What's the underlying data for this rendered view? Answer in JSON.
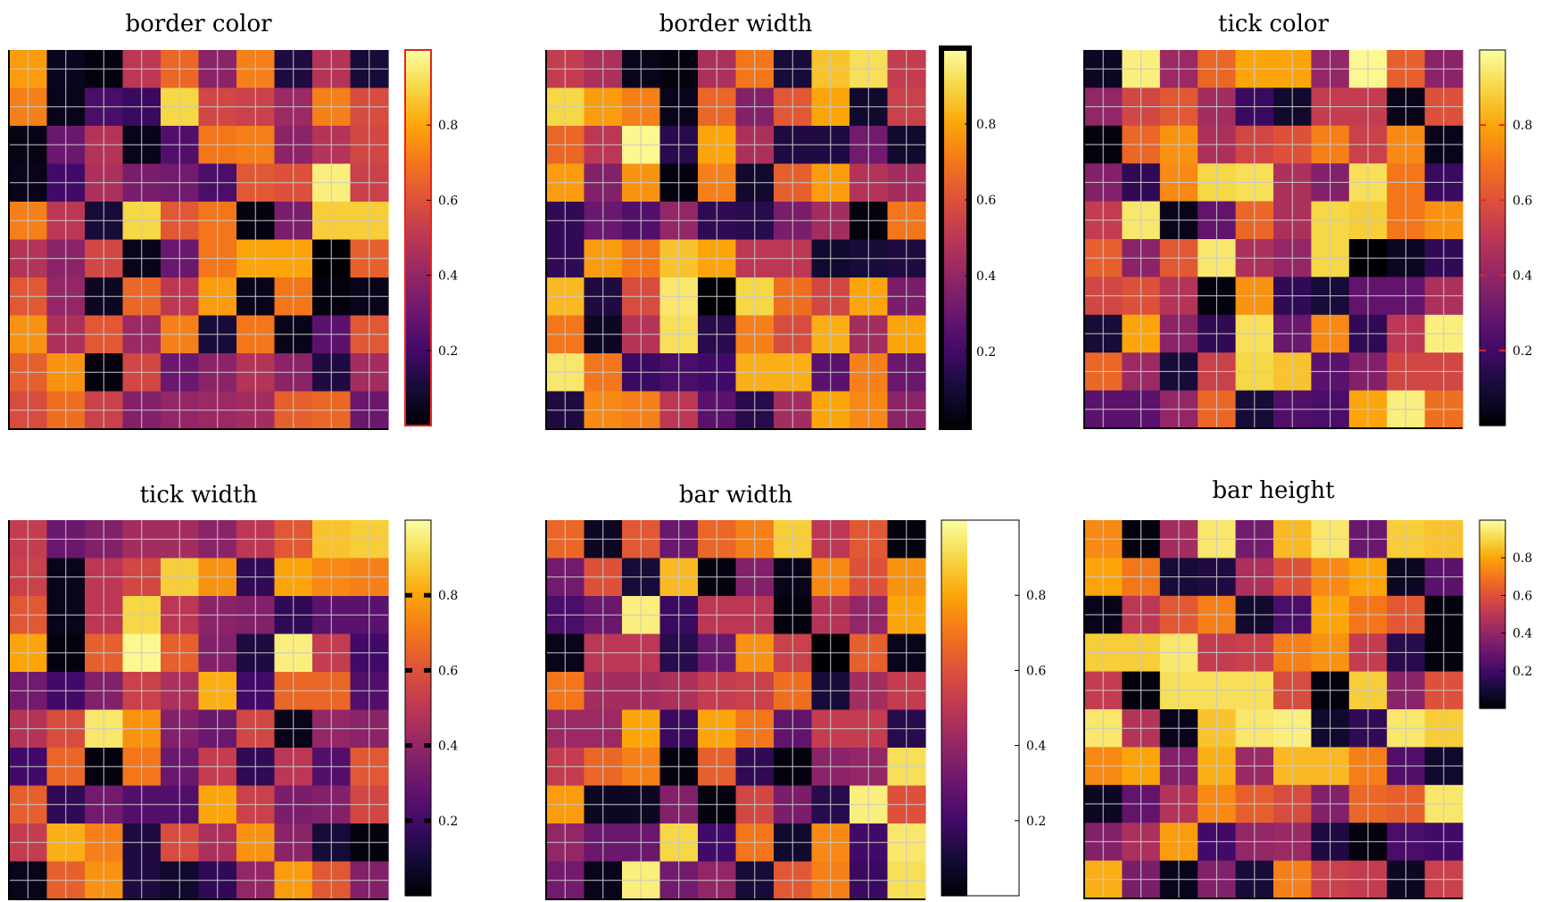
{
  "colormap": "inferno",
  "chart_data": [
    {
      "type": "heatmap",
      "title": "border color",
      "rows": 10,
      "cols": 10,
      "colorbar": {
        "ticks": [
          0.2,
          0.4,
          0.6,
          0.8
        ],
        "tick_labels": [
          "0.2",
          "0.4",
          "0.6",
          "0.8"
        ],
        "range": [
          0,
          1
        ],
        "height": "full",
        "border_color": "#e8231b",
        "style": "border color"
      },
      "values": [
        [
          0.78,
          0.05,
          0.02,
          0.5,
          0.66,
          0.38,
          0.72,
          0.12,
          0.48,
          0.1
        ],
        [
          0.72,
          0.04,
          0.22,
          0.18,
          0.9,
          0.56,
          0.54,
          0.42,
          0.72,
          0.58
        ],
        [
          0.03,
          0.3,
          0.48,
          0.04,
          0.24,
          0.7,
          0.72,
          0.38,
          0.48,
          0.56
        ],
        [
          0.04,
          0.2,
          0.46,
          0.34,
          0.32,
          0.22,
          0.62,
          0.6,
          0.96,
          0.54
        ],
        [
          0.72,
          0.5,
          0.1,
          0.9,
          0.62,
          0.7,
          0.02,
          0.34,
          0.88,
          0.88
        ],
        [
          0.48,
          0.38,
          0.56,
          0.04,
          0.3,
          0.7,
          0.8,
          0.8,
          0.0,
          0.64
        ],
        [
          0.62,
          0.4,
          0.06,
          0.66,
          0.5,
          0.78,
          0.04,
          0.7,
          0.02,
          0.04
        ],
        [
          0.76,
          0.46,
          0.62,
          0.42,
          0.72,
          0.1,
          0.7,
          0.04,
          0.26,
          0.62
        ],
        [
          0.64,
          0.76,
          0.02,
          0.56,
          0.3,
          0.38,
          0.48,
          0.38,
          0.12,
          0.44
        ],
        [
          0.58,
          0.68,
          0.54,
          0.36,
          0.4,
          0.42,
          0.44,
          0.64,
          0.66,
          0.3
        ]
      ]
    },
    {
      "type": "heatmap",
      "title": "border width",
      "rows": 10,
      "cols": 10,
      "colorbar": {
        "ticks": [
          0.2,
          0.4,
          0.6,
          0.8
        ],
        "tick_labels": [
          "0.2",
          "0.4",
          "0.6",
          "0.8"
        ],
        "range": [
          0,
          1
        ],
        "height": "full",
        "border_color": "#000000",
        "style": "border width"
      },
      "values": [
        [
          0.52,
          0.46,
          0.04,
          0.02,
          0.46,
          0.7,
          0.1,
          0.86,
          0.92,
          0.52
        ],
        [
          0.9,
          0.78,
          0.72,
          0.04,
          0.66,
          0.36,
          0.62,
          0.8,
          0.08,
          0.54
        ],
        [
          0.66,
          0.5,
          0.98,
          0.14,
          0.8,
          0.46,
          0.12,
          0.12,
          0.32,
          0.08
        ],
        [
          0.78,
          0.36,
          0.76,
          0.02,
          0.72,
          0.08,
          0.64,
          0.78,
          0.48,
          0.44
        ],
        [
          0.16,
          0.3,
          0.24,
          0.4,
          0.16,
          0.14,
          0.34,
          0.44,
          0.02,
          0.7
        ],
        [
          0.16,
          0.78,
          0.7,
          0.86,
          0.8,
          0.5,
          0.5,
          0.08,
          0.1,
          0.12
        ],
        [
          0.84,
          0.12,
          0.58,
          0.94,
          0.0,
          0.9,
          0.68,
          0.56,
          0.8,
          0.34
        ],
        [
          0.7,
          0.06,
          0.48,
          0.92,
          0.14,
          0.72,
          0.58,
          0.82,
          0.44,
          0.8
        ],
        [
          0.94,
          0.7,
          0.18,
          0.22,
          0.2,
          0.82,
          0.82,
          0.26,
          0.72,
          0.3
        ],
        [
          0.12,
          0.74,
          0.72,
          0.5,
          0.26,
          0.14,
          0.44,
          0.8,
          0.74,
          0.38
        ]
      ]
    },
    {
      "type": "heatmap",
      "title": "tick color",
      "rows": 10,
      "cols": 10,
      "colorbar": {
        "ticks": [
          0.2,
          0.4,
          0.6,
          0.8
        ],
        "tick_labels": [
          "0.2",
          "0.4",
          "0.6",
          "0.8"
        ],
        "range": [
          0,
          1
        ],
        "height": "full",
        "tick_color": "#e8231b",
        "style": "tick color"
      },
      "values": [
        [
          0.06,
          0.96,
          0.42,
          0.66,
          0.8,
          0.8,
          0.4,
          0.98,
          0.64,
          0.38
        ],
        [
          0.4,
          0.56,
          0.62,
          0.44,
          0.18,
          0.08,
          0.52,
          0.52,
          0.04,
          0.6
        ],
        [
          0.02,
          0.66,
          0.76,
          0.46,
          0.56,
          0.6,
          0.72,
          0.54,
          0.74,
          0.04
        ],
        [
          0.36,
          0.16,
          0.74,
          0.9,
          0.92,
          0.46,
          0.36,
          0.92,
          0.7,
          0.18
        ],
        [
          0.52,
          0.94,
          0.04,
          0.28,
          0.66,
          0.46,
          0.9,
          0.88,
          0.7,
          0.76
        ],
        [
          0.64,
          0.38,
          0.62,
          0.94,
          0.46,
          0.4,
          0.9,
          0.0,
          0.06,
          0.16
        ],
        [
          0.56,
          0.6,
          0.48,
          0.02,
          0.76,
          0.16,
          0.1,
          0.28,
          0.28,
          0.46
        ],
        [
          0.1,
          0.8,
          0.38,
          0.16,
          0.92,
          0.3,
          0.74,
          0.16,
          0.5,
          0.96
        ],
        [
          0.66,
          0.42,
          0.1,
          0.54,
          0.9,
          0.86,
          0.26,
          0.36,
          0.56,
          0.56
        ],
        [
          0.26,
          0.26,
          0.4,
          0.66,
          0.1,
          0.24,
          0.22,
          0.8,
          0.96,
          0.68
        ]
      ]
    },
    {
      "type": "heatmap",
      "title": "tick width",
      "rows": 10,
      "cols": 10,
      "colorbar": {
        "ticks": [
          0.2,
          0.4,
          0.6,
          0.8
        ],
        "tick_labels": [
          "0.2",
          "0.4",
          "0.6",
          "0.8"
        ],
        "range": [
          0,
          1
        ],
        "height": "full",
        "tick_width": "thick",
        "style": "tick width"
      },
      "values": [
        [
          0.52,
          0.3,
          0.36,
          0.44,
          0.44,
          0.38,
          0.5,
          0.62,
          0.86,
          0.88
        ],
        [
          0.54,
          0.04,
          0.5,
          0.56,
          0.88,
          0.76,
          0.16,
          0.8,
          0.74,
          0.72
        ],
        [
          0.62,
          0.04,
          0.5,
          0.9,
          0.5,
          0.38,
          0.36,
          0.16,
          0.26,
          0.26
        ],
        [
          0.8,
          0.02,
          0.64,
          0.98,
          0.64,
          0.36,
          0.12,
          0.96,
          0.52,
          0.2
        ],
        [
          0.32,
          0.2,
          0.36,
          0.54,
          0.46,
          0.82,
          0.2,
          0.66,
          0.66,
          0.24
        ],
        [
          0.48,
          0.58,
          0.94,
          0.76,
          0.36,
          0.3,
          0.56,
          0.04,
          0.4,
          0.38
        ],
        [
          0.2,
          0.66,
          0.02,
          0.7,
          0.3,
          0.52,
          0.16,
          0.5,
          0.24,
          0.62
        ],
        [
          0.64,
          0.16,
          0.32,
          0.24,
          0.24,
          0.8,
          0.54,
          0.34,
          0.36,
          0.56
        ],
        [
          0.52,
          0.82,
          0.72,
          0.12,
          0.58,
          0.46,
          0.76,
          0.38,
          0.1,
          0.02
        ],
        [
          0.04,
          0.64,
          0.76,
          0.12,
          0.08,
          0.16,
          0.4,
          0.78,
          0.62,
          0.36
        ]
      ]
    },
    {
      "type": "heatmap",
      "title": "bar width",
      "rows": 10,
      "cols": 10,
      "colorbar": {
        "ticks": [
          0.2,
          0.4,
          0.6,
          0.8
        ],
        "tick_labels": [
          "0.2",
          "0.4",
          "0.6",
          "0.8"
        ],
        "range": [
          0,
          1
        ],
        "height": "full",
        "bar_width": "wide",
        "style": "bar width"
      },
      "values": [
        [
          0.66,
          0.06,
          0.62,
          0.3,
          0.66,
          0.72,
          0.88,
          0.5,
          0.62,
          0.02
        ],
        [
          0.32,
          0.6,
          0.1,
          0.84,
          0.02,
          0.36,
          0.04,
          0.74,
          0.6,
          0.76
        ],
        [
          0.22,
          0.3,
          0.96,
          0.18,
          0.5,
          0.5,
          0.02,
          0.48,
          0.4,
          0.8
        ],
        [
          0.04,
          0.5,
          0.5,
          0.14,
          0.3,
          0.76,
          0.54,
          0.0,
          0.64,
          0.04
        ],
        [
          0.7,
          0.44,
          0.44,
          0.46,
          0.52,
          0.54,
          0.68,
          0.1,
          0.44,
          0.52
        ],
        [
          0.42,
          0.42,
          0.8,
          0.18,
          0.8,
          0.7,
          0.28,
          0.52,
          0.52,
          0.14
        ],
        [
          0.52,
          0.66,
          0.72,
          0.02,
          0.64,
          0.16,
          0.02,
          0.38,
          0.4,
          0.92
        ],
        [
          0.78,
          0.06,
          0.06,
          0.36,
          0.02,
          0.56,
          0.34,
          0.14,
          0.96,
          0.6
        ],
        [
          0.4,
          0.3,
          0.3,
          0.9,
          0.2,
          0.7,
          0.08,
          0.74,
          0.2,
          0.94
        ],
        [
          0.32,
          0.04,
          0.96,
          0.32,
          0.4,
          0.1,
          0.62,
          0.72,
          0.18,
          0.92
        ]
      ]
    },
    {
      "type": "heatmap",
      "title": "bar height",
      "rows": 10,
      "cols": 10,
      "colorbar": {
        "ticks": [
          0.2,
          0.4,
          0.6,
          0.8
        ],
        "tick_labels": [
          "0.2",
          "0.4",
          "0.6",
          "0.8"
        ],
        "range": [
          0,
          1
        ],
        "height": "half",
        "style": "bar height"
      },
      "values": [
        [
          0.74,
          0.02,
          0.44,
          0.94,
          0.32,
          0.84,
          0.94,
          0.3,
          0.88,
          0.86
        ],
        [
          0.8,
          0.7,
          0.1,
          0.12,
          0.46,
          0.6,
          0.74,
          0.8,
          0.06,
          0.26
        ],
        [
          0.04,
          0.5,
          0.62,
          0.72,
          0.08,
          0.22,
          0.8,
          0.7,
          0.62,
          0.02
        ],
        [
          0.88,
          0.88,
          0.94,
          0.52,
          0.54,
          0.72,
          0.76,
          0.52,
          0.14,
          0.02
        ],
        [
          0.52,
          0.02,
          0.92,
          0.92,
          0.92,
          0.58,
          0.02,
          0.88,
          0.38,
          0.6
        ],
        [
          0.94,
          0.48,
          0.04,
          0.86,
          0.94,
          0.96,
          0.08,
          0.16,
          0.94,
          0.88
        ],
        [
          0.74,
          0.8,
          0.36,
          0.82,
          0.42,
          0.84,
          0.84,
          0.72,
          0.24,
          0.08
        ],
        [
          0.06,
          0.28,
          0.48,
          0.74,
          0.64,
          0.58,
          0.36,
          0.66,
          0.64,
          0.94
        ],
        [
          0.36,
          0.46,
          0.78,
          0.2,
          0.4,
          0.42,
          0.12,
          0.02,
          0.22,
          0.2
        ],
        [
          0.82,
          0.34,
          0.04,
          0.36,
          0.1,
          0.72,
          0.54,
          0.52,
          0.06,
          0.54
        ]
      ]
    }
  ]
}
